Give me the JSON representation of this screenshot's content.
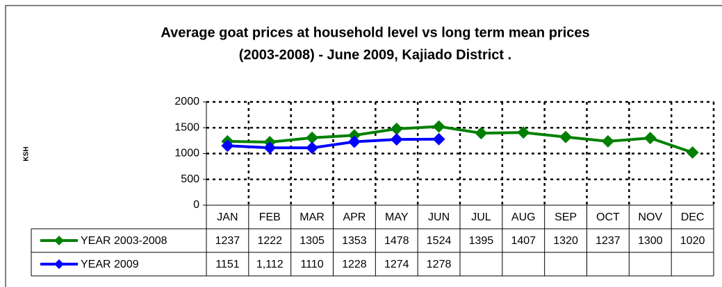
{
  "chart_data": {
    "type": "line",
    "title": [
      "Average goat prices at household level vs long term mean prices",
      "(2003-2008) - June 2009, Kajiado District ."
    ],
    "y_label": "KSH",
    "categories": [
      "JAN",
      "FEB",
      "MAR",
      "APR",
      "MAY",
      "JUN",
      "JUL",
      "AUG",
      "SEP",
      "OCT",
      "NOV",
      "DEC"
    ],
    "series": [
      {
        "name": "YEAR 2003-2008",
        "color": "#008000",
        "values": [
          1237,
          1222,
          1305,
          1353,
          1478,
          1524,
          1395,
          1407,
          1320,
          1237,
          1300,
          1020
        ]
      },
      {
        "name": "YEAR 2009",
        "color": "#0000ff",
        "values": [
          1151,
          1112,
          1110,
          1228,
          1274,
          1278,
          null,
          null,
          null,
          null,
          null,
          null
        ],
        "value_labels": [
          "1151",
          "1,112",
          "1110",
          "1228",
          "1274",
          "1278",
          null,
          null,
          null,
          null,
          null,
          null
        ]
      }
    ],
    "ylim": [
      0,
      2000
    ],
    "yticks": [
      0,
      500,
      1000,
      1500,
      2000
    ],
    "grid": true
  }
}
